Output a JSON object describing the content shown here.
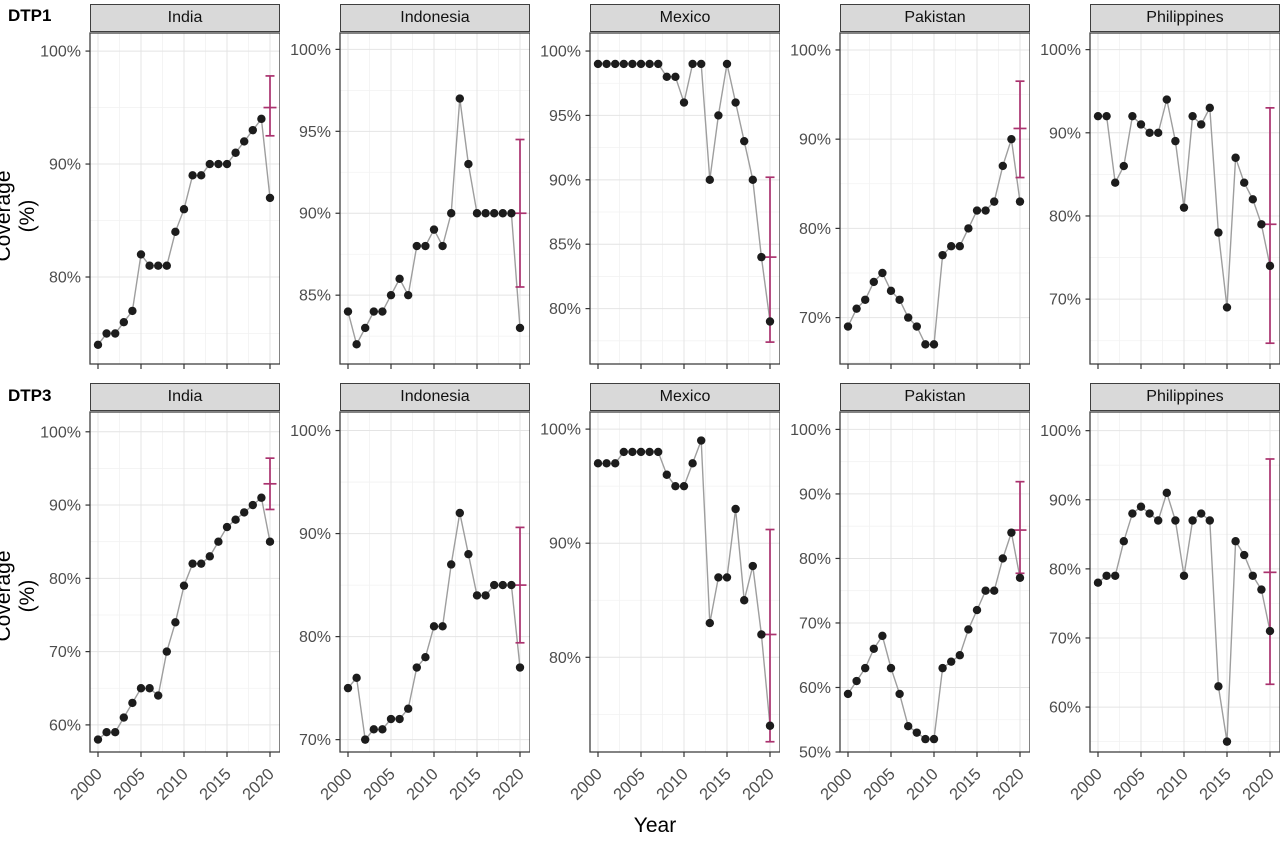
{
  "figure": {
    "row_labels": [
      "DTP1",
      "DTP3"
    ],
    "y_axis_title": "Coverage (%)",
    "x_axis_title": "Year",
    "unit": "%",
    "x_ticks": [
      2000,
      2005,
      2010,
      2015,
      2020
    ],
    "years": [
      2000,
      2001,
      2002,
      2003,
      2004,
      2005,
      2006,
      2007,
      2008,
      2009,
      2010,
      2011,
      2012,
      2013,
      2014,
      2015,
      2016,
      2017,
      2018,
      2019,
      2020
    ],
    "colors": {
      "point": "#1c1c1c",
      "line": "#9e9e9e",
      "errorbar": "#aa326e",
      "strip_bg": "#d9d9d9",
      "strip_border": "#3f3f3f",
      "panel_border": "#404040",
      "grid_major": "#e4e4e4",
      "grid_minor": "#f2f2f2",
      "axis_text": "#4d4d4d",
      "tick_mark": "#333333"
    }
  },
  "chart_data": [
    {
      "type": "line",
      "row": "DTP1",
      "country": "India",
      "values": [
        74,
        75,
        75,
        76,
        77,
        82,
        81,
        81,
        81,
        84,
        86,
        89,
        89,
        90,
        90,
        90,
        91,
        92,
        93,
        94,
        87
      ],
      "error_bar_2020": {
        "lower": 92.5,
        "mid": 95.0,
        "upper": 97.8
      },
      "y_ticks": [
        100,
        90,
        80
      ],
      "ylim": [
        72.3,
        101.6
      ]
    },
    {
      "type": "line",
      "row": "DTP1",
      "country": "Indonesia",
      "values": [
        84,
        82,
        83,
        84,
        84,
        85,
        86,
        85,
        88,
        88,
        89,
        88,
        90,
        97,
        93,
        90,
        90,
        90,
        90,
        90,
        83
      ],
      "error_bar_2020": {
        "lower": 85.5,
        "mid": 90.0,
        "upper": 94.5
      },
      "y_ticks": [
        100,
        95,
        90,
        85
      ],
      "ylim": [
        80.8,
        101.0
      ]
    },
    {
      "type": "line",
      "row": "DTP1",
      "country": "Mexico",
      "values": [
        99,
        99,
        99,
        99,
        99,
        99,
        99,
        99,
        98,
        98,
        96,
        99,
        99,
        90,
        95,
        99,
        96,
        93,
        90,
        84,
        79
      ],
      "error_bar_2020": {
        "lower": 77.4,
        "mid": 84.0,
        "upper": 90.2
      },
      "y_ticks": [
        100,
        95,
        90,
        85,
        80
      ],
      "ylim": [
        75.7,
        101.4
      ]
    },
    {
      "type": "line",
      "row": "DTP1",
      "country": "Pakistan",
      "values": [
        69,
        71,
        72,
        74,
        75,
        73,
        72,
        70,
        69,
        67,
        67,
        77,
        78,
        78,
        80,
        82,
        82,
        83,
        87,
        90,
        83
      ],
      "error_bar_2020": {
        "lower": 85.7,
        "mid": 91.2,
        "upper": 96.5
      },
      "y_ticks": [
        100,
        90,
        80,
        70
      ],
      "ylim": [
        64.8,
        101.9
      ]
    },
    {
      "type": "line",
      "row": "DTP1",
      "country": "Philippines",
      "values": [
        92,
        92,
        84,
        86,
        92,
        91,
        90,
        90,
        94,
        89,
        81,
        92,
        91,
        93,
        78,
        69,
        87,
        84,
        82,
        79,
        74
      ],
      "error_bar_2020": {
        "lower": 64.7,
        "mid": 79.0,
        "upper": 93.0
      },
      "y_ticks": [
        100,
        90,
        80,
        70
      ],
      "ylim": [
        62.2,
        102.0
      ]
    },
    {
      "type": "line",
      "row": "DTP3",
      "country": "India",
      "values": [
        58,
        59,
        59,
        61,
        63,
        65,
        65,
        64,
        70,
        74,
        79,
        82,
        82,
        83,
        85,
        87,
        88,
        89,
        90,
        91,
        85
      ],
      "error_bar_2020": {
        "lower": 89.4,
        "mid": 92.9,
        "upper": 96.4
      },
      "y_ticks": [
        100,
        90,
        80,
        70,
        60
      ],
      "ylim": [
        56.3,
        102.7
      ]
    },
    {
      "type": "line",
      "row": "DTP3",
      "country": "Indonesia",
      "values": [
        75,
        76,
        70,
        71,
        71,
        72,
        72,
        73,
        77,
        78,
        81,
        81,
        87,
        92,
        88,
        84,
        84,
        85,
        85,
        85,
        77
      ],
      "error_bar_2020": {
        "lower": 79.4,
        "mid": 85.0,
        "upper": 90.6
      },
      "y_ticks": [
        100,
        90,
        80,
        70
      ],
      "ylim": [
        68.8,
        101.8
      ]
    },
    {
      "type": "line",
      "row": "DTP3",
      "country": "Mexico",
      "values": [
        97,
        97,
        97,
        98,
        98,
        98,
        98,
        98,
        96,
        95,
        95,
        97,
        99,
        83,
        87,
        87,
        93,
        85,
        88,
        82,
        74
      ],
      "error_bar_2020": {
        "lower": 72.6,
        "mid": 82.0,
        "upper": 91.2
      },
      "y_ticks": [
        100,
        90,
        80
      ],
      "ylim": [
        71.7,
        101.5
      ]
    },
    {
      "type": "line",
      "row": "DTP3",
      "country": "Pakistan",
      "values": [
        59,
        61,
        63,
        66,
        68,
        63,
        59,
        54,
        53,
        52,
        52,
        63,
        64,
        65,
        69,
        72,
        75,
        75,
        80,
        84,
        77
      ],
      "error_bar_2020": {
        "lower": 77.7,
        "mid": 84.4,
        "upper": 91.9
      },
      "y_ticks": [
        100,
        90,
        80,
        70,
        60,
        50
      ],
      "ylim": [
        50.0,
        102.7
      ]
    },
    {
      "type": "line",
      "row": "DTP3",
      "country": "Philippines",
      "values": [
        78,
        79,
        79,
        84,
        88,
        89,
        88,
        87,
        91,
        87,
        79,
        87,
        88,
        87,
        63,
        55,
        84,
        82,
        79,
        77,
        71
      ],
      "error_bar_2020": {
        "lower": 63.3,
        "mid": 79.5,
        "upper": 95.9
      },
      "y_ticks": [
        100,
        90,
        80,
        70,
        60
      ],
      "ylim": [
        53.5,
        102.7
      ]
    }
  ]
}
